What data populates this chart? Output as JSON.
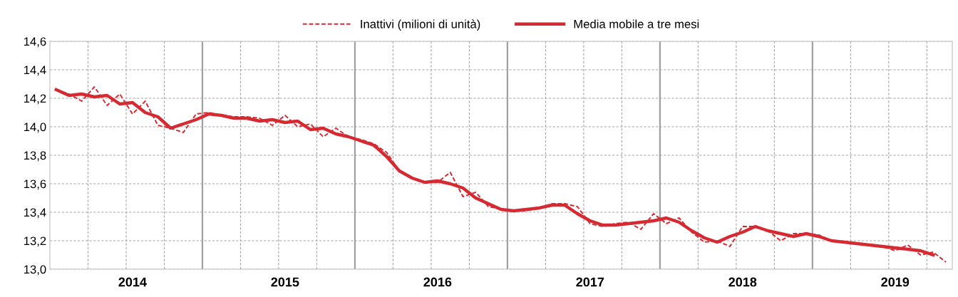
{
  "chart_data": {
    "type": "line",
    "categories": [
      null,
      null,
      null,
      null,
      null,
      null,
      "2014",
      null,
      null,
      null,
      null,
      null,
      null,
      null,
      null,
      null,
      null,
      null,
      "2015",
      null,
      null,
      null,
      null,
      null,
      null,
      null,
      null,
      null,
      null,
      null,
      "2016",
      null,
      null,
      null,
      null,
      null,
      null,
      null,
      null,
      null,
      null,
      null,
      "2017",
      null,
      null,
      null,
      null,
      null,
      null,
      null,
      null,
      null,
      null,
      null,
      "2018",
      null,
      null,
      null,
      null,
      null,
      null,
      null,
      null,
      null,
      null,
      null,
      "2019",
      null,
      null,
      null,
      null
    ],
    "series": [
      {
        "name": "Inattivi (milioni di unità)",
        "color": "#d62a32",
        "line_style": "dashed",
        "values": [
          14.26,
          14.23,
          14.18,
          14.28,
          14.15,
          14.23,
          14.09,
          14.18,
          14.01,
          13.99,
          13.96,
          14.09,
          14.1,
          14.08,
          14.07,
          14.07,
          14.06,
          14.01,
          14.08,
          14.0,
          14.02,
          13.93,
          13.99,
          13.93,
          13.91,
          13.88,
          13.82,
          13.69,
          13.64,
          13.61,
          13.61,
          13.68,
          13.51,
          13.54,
          13.44,
          13.42,
          13.41,
          13.41,
          13.43,
          13.46,
          13.46,
          13.44,
          13.32,
          13.3,
          13.32,
          13.33,
          13.28,
          13.39,
          13.32,
          13.36,
          13.26,
          13.19,
          13.2,
          13.16,
          13.3,
          13.3,
          13.27,
          13.2,
          13.25,
          13.25,
          13.24,
          13.2,
          13.19,
          13.18,
          13.17,
          13.16,
          13.13,
          13.17,
          13.1,
          13.12,
          13.05
        ]
      },
      {
        "name": "Media mobile a tre mesi",
        "color": "#d62a32",
        "line_style": "solid",
        "values": [
          14.26,
          14.22,
          14.23,
          14.21,
          14.22,
          14.16,
          14.17,
          14.1,
          14.07,
          13.99,
          14.02,
          14.05,
          14.09,
          14.08,
          14.06,
          14.06,
          14.04,
          14.05,
          14.03,
          14.04,
          13.98,
          13.99,
          13.95,
          13.93,
          13.9,
          13.87,
          13.79,
          13.69,
          13.64,
          13.61,
          13.62,
          13.6,
          13.57,
          13.5,
          13.46,
          13.42,
          13.41,
          13.42,
          13.43,
          13.45,
          13.45,
          13.39,
          13.34,
          13.31,
          13.31,
          13.32,
          13.33,
          13.34,
          13.36,
          13.33,
          13.27,
          13.22,
          13.19,
          13.23,
          13.26,
          13.3,
          13.27,
          13.25,
          13.23,
          13.25,
          13.23,
          13.2,
          13.19,
          13.18,
          13.17,
          13.16,
          13.15,
          13.14,
          13.13,
          13.1,
          null
        ]
      }
    ],
    "ylim": [
      13.0,
      14.6
    ],
    "yticks": [
      {
        "value": 13.0,
        "label": "13,0"
      },
      {
        "value": 13.2,
        "label": "13,2"
      },
      {
        "value": 13.4,
        "label": "13,4"
      },
      {
        "value": 13.6,
        "label": "13,6"
      },
      {
        "value": 13.8,
        "label": "13,8"
      },
      {
        "value": 14.0,
        "label": "14,0"
      },
      {
        "value": 14.2,
        "label": "14,2"
      },
      {
        "value": 14.4,
        "label": "14,4"
      },
      {
        "value": 14.6,
        "label": "14,6"
      }
    ],
    "grid": true,
    "legend": "top",
    "marker": "none"
  }
}
